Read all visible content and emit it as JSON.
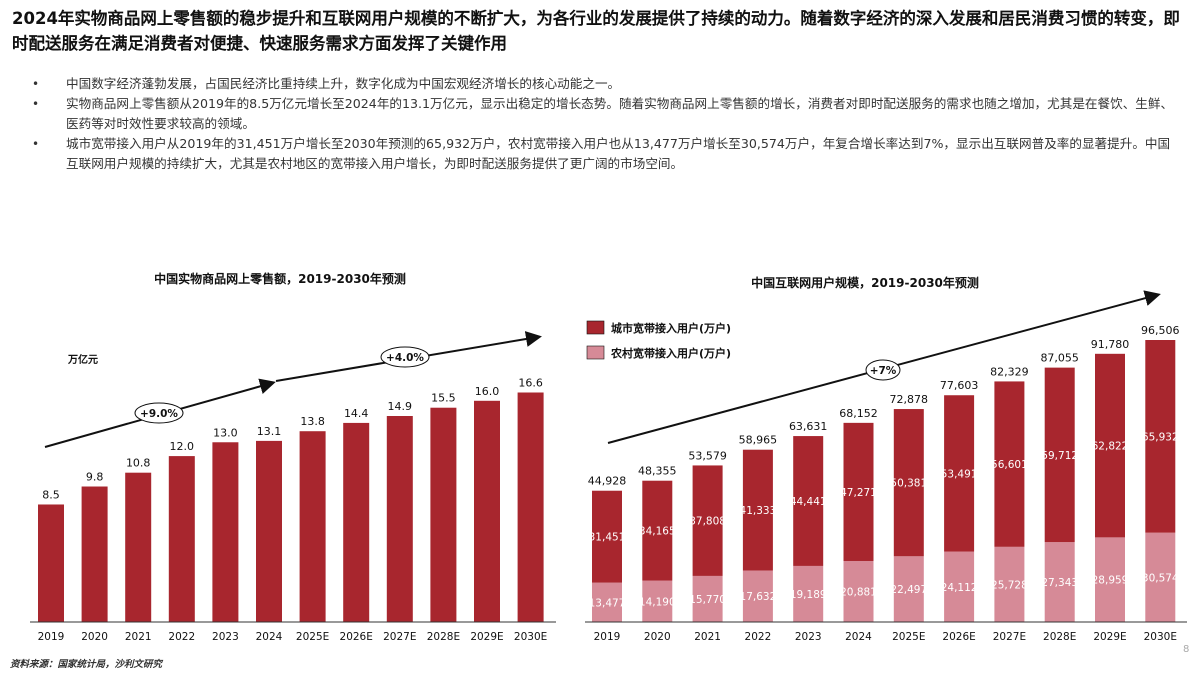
{
  "headline": "2024年实物商品网上零售额的稳步提升和互联网用户规模的不断扩大，为各行业的发展提供了持续的动力。随着数字经济的深入发展和居民消费习惯的转变，即时配送服务在满足消费者对便捷、快速服务需求方面发挥了关键作用",
  "bullets": [
    "中国数字经济蓬勃发展，占国民经济比重持续上升，数字化成为中国宏观经济增长的核心动能之一。",
    "实物商品网上零售额从2019年的8.5万亿元增长至2024年的13.1万亿元，显示出稳定的增长态势。随着实物商品网上零售额的增长，消费者对即时配送服务的需求也随之增加，尤其是在餐饮、生鲜、医药等对时效性要求较高的领域。",
    "城市宽带接入用户从2019年的31,451万户增长至2030年预测的65,932万户，农村宽带接入用户也从13,477万户增长至30,574万户，年复合增长率达到7%，显示出互联网普及率的显著提升。中国互联网用户规模的持续扩大，尤其是农村地区的宽带接入用户增长，为即时配送服务提供了更广阔的市场空间。"
  ],
  "source": "资料来源：国家统计局，沙利文研究",
  "page_number": "8",
  "colors": {
    "bar": "#a8262e",
    "rural": "#d68a97",
    "arrow": "#111111"
  },
  "chart_data": [
    {
      "type": "bar",
      "title": "中国实物商品网上零售额，2019-2030年预测",
      "ylabel": "万亿元",
      "categories": [
        "2019",
        "2020",
        "2021",
        "2022",
        "2023",
        "2024",
        "2025E",
        "2026E",
        "2027E",
        "2028E",
        "2029E",
        "2030E"
      ],
      "values": [
        8.5,
        9.8,
        10.8,
        12.0,
        13.0,
        13.1,
        13.8,
        14.4,
        14.9,
        15.5,
        16.0,
        16.6
      ],
      "value_labels": [
        "8.5",
        "9.8",
        "10.8",
        "12.0",
        "13.0",
        "13.1",
        "13.8",
        "14.4",
        "14.9",
        "15.5",
        "16.0",
        "16.6"
      ],
      "ylim": [
        0,
        18
      ],
      "annotations": [
        "+9.0%",
        "+4.0%"
      ],
      "grid": false
    },
    {
      "type": "bar",
      "stacked": true,
      "title": "中国互联网用户规模，2019-2030年预测",
      "categories": [
        "2019",
        "2020",
        "2021",
        "2022",
        "2023",
        "2024",
        "2025E",
        "2026E",
        "2027E",
        "2028E",
        "2029E",
        "2030E"
      ],
      "series": [
        {
          "name": "农村宽带接入用户(万户)",
          "values": [
            13477,
            14190,
            15770,
            17632,
            19189,
            20881,
            22497,
            24112,
            25728,
            27343,
            28959,
            30574
          ],
          "labels": [
            "13,477",
            "14,190",
            "15,770",
            "17,632",
            "19,189",
            "20,881",
            "22,497",
            "24,112",
            "25,728",
            "27,343",
            "28,959",
            "30,574"
          ]
        },
        {
          "name": "城市宽带接入用户(万户)",
          "values": [
            31451,
            34165,
            37808,
            41333,
            44441,
            47271,
            50381,
            53491,
            56601,
            59712,
            62822,
            65932
          ],
          "labels": [
            "31,451",
            "34,165",
            "37,808",
            "41,333",
            "44,441",
            "47,271",
            "50,381",
            "53,491",
            "56,601",
            "59,712",
            "62,822",
            "65,932"
          ]
        }
      ],
      "totals": [
        "44,928",
        "48,355",
        "53,579",
        "58,965",
        "63,631",
        "68,152",
        "72,878",
        "77,603",
        "82,329",
        "87,055",
        "91,780",
        "96,506"
      ],
      "total_values": [
        44928,
        48355,
        53579,
        58965,
        63631,
        68152,
        72878,
        77603,
        82329,
        87055,
        91780,
        96506
      ],
      "ylim": [
        0,
        110000
      ],
      "annotations": [
        "+7%"
      ],
      "legend": "top-left",
      "grid": false
    }
  ]
}
